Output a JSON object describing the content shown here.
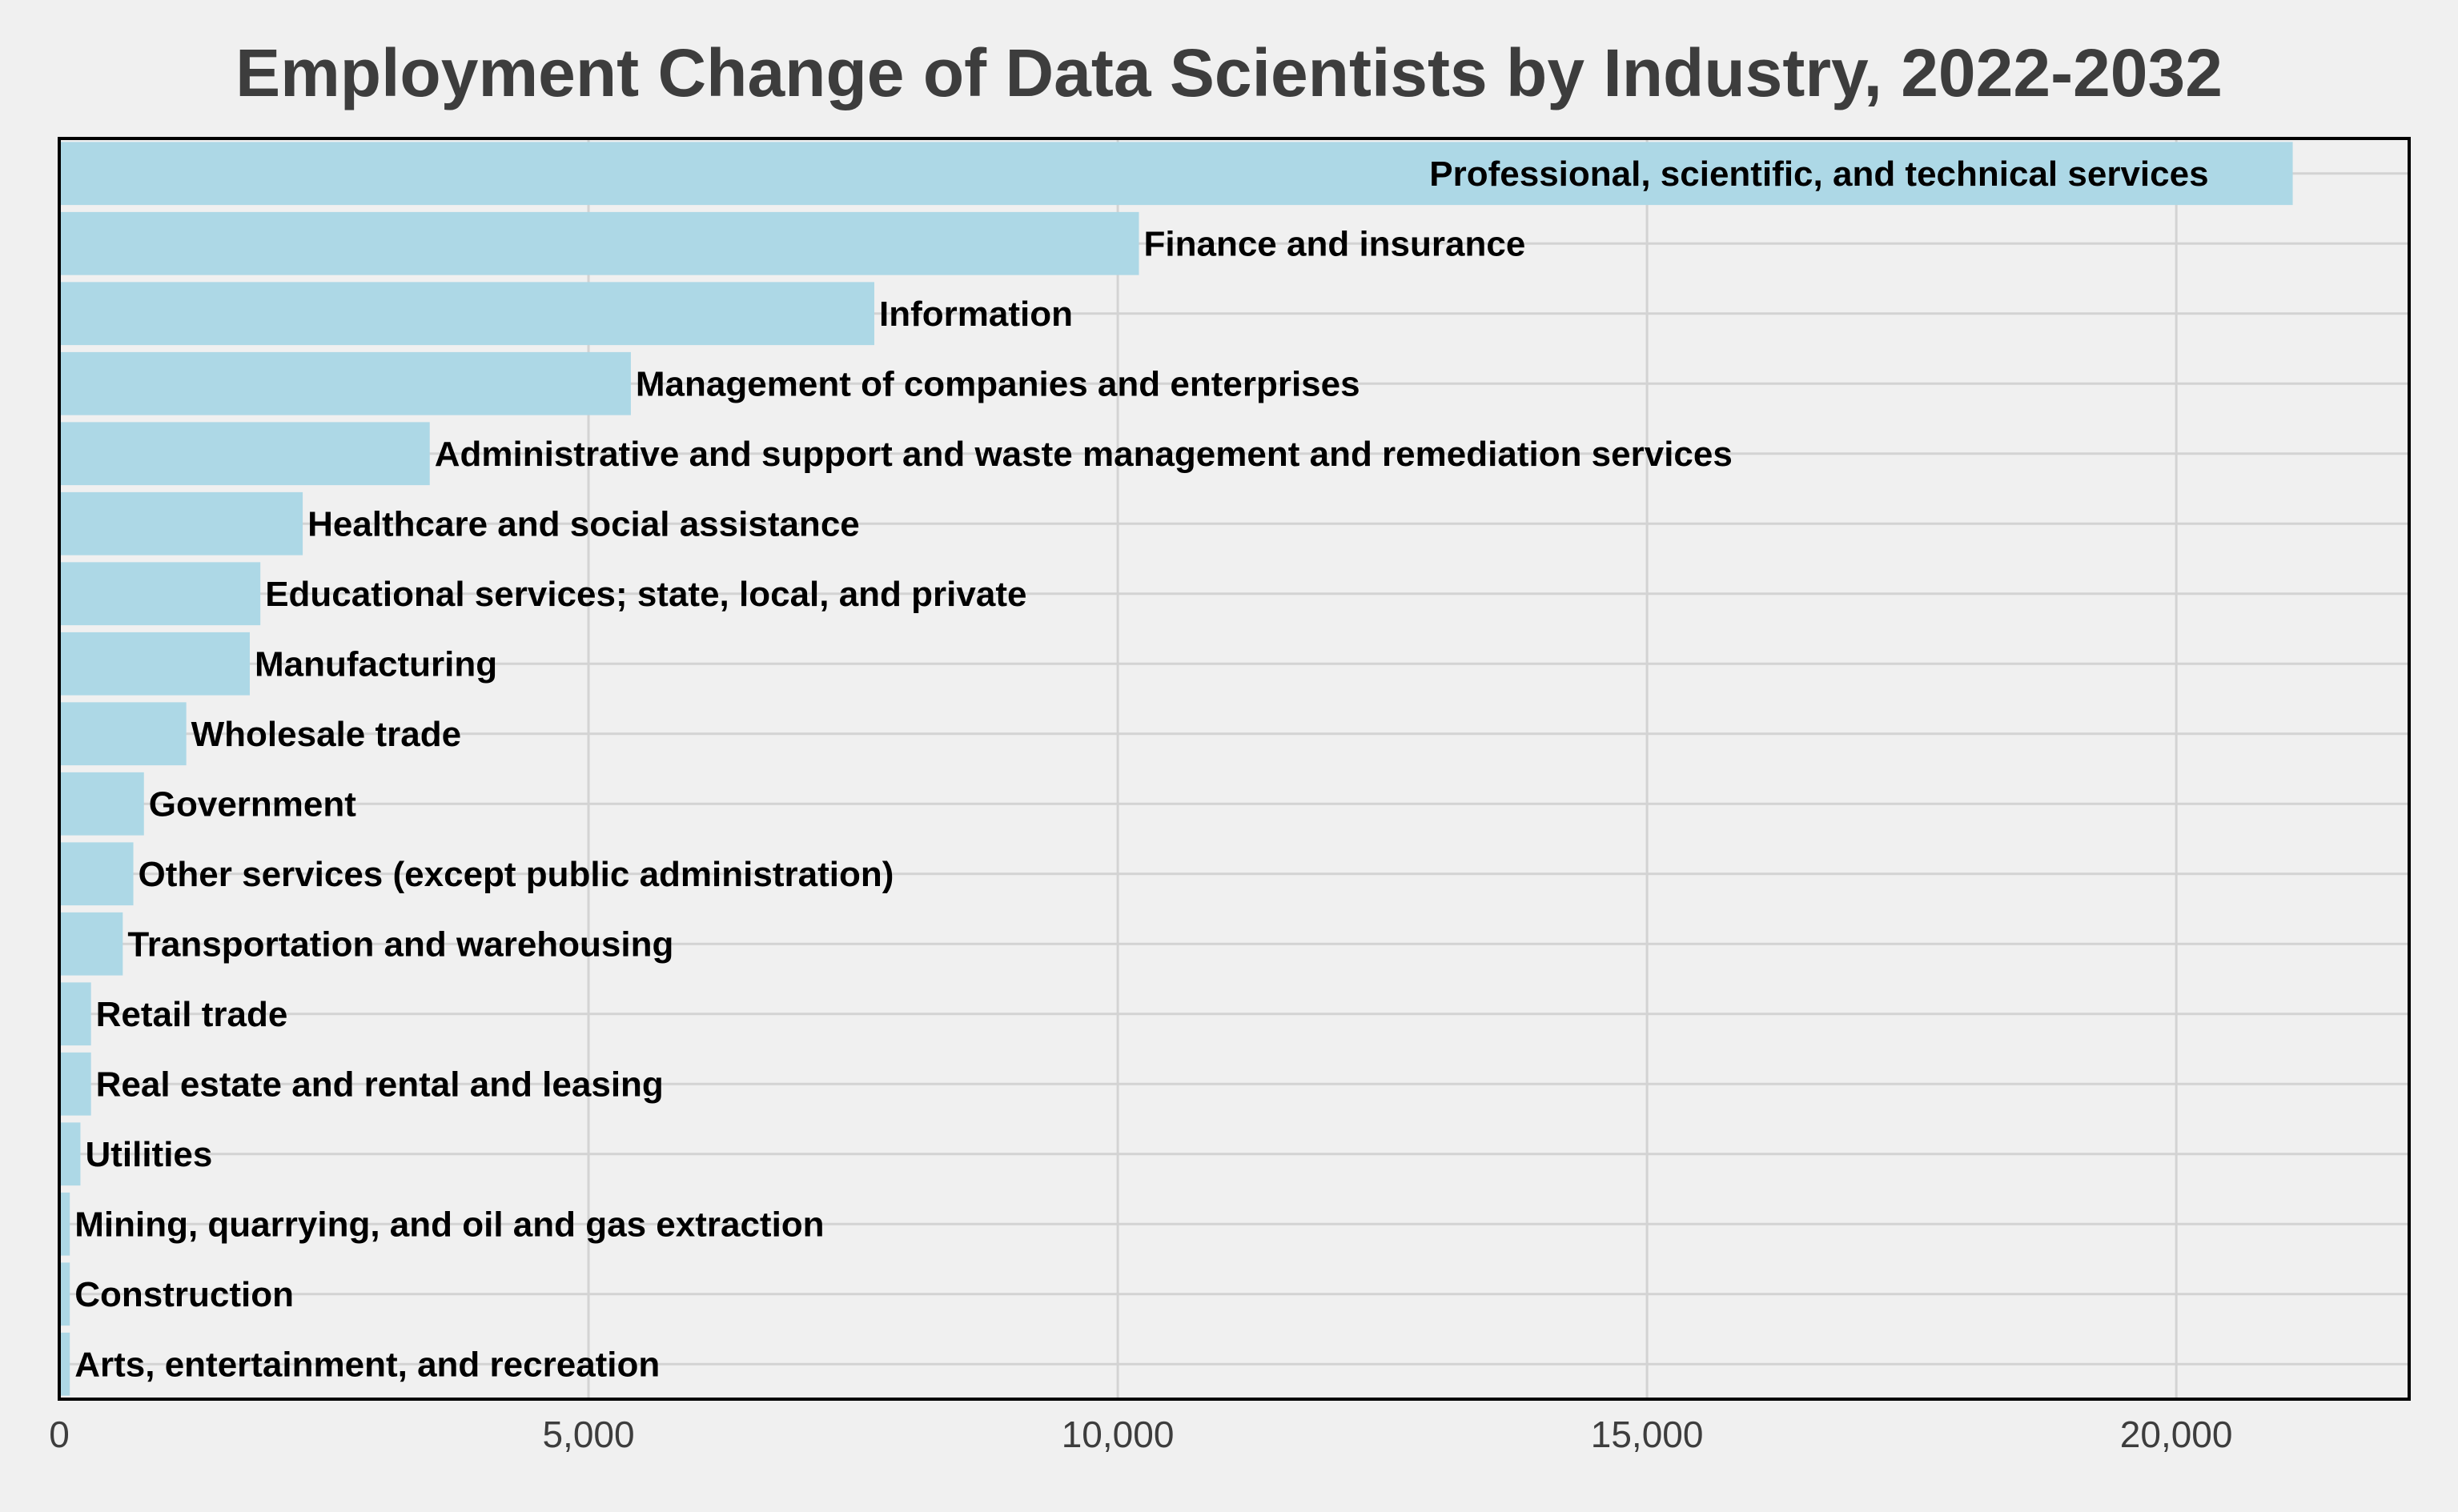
{
  "chart_data": {
    "type": "bar",
    "orientation": "horizontal",
    "title": "Employment Change of Data Scientists by Industry, 2022-2032",
    "xlabel": "",
    "ylabel": "",
    "xlim": [
      0,
      22200
    ],
    "x_ticks": [
      0,
      5000,
      10000,
      15000,
      20000
    ],
    "x_tick_labels": [
      "0",
      "5,000",
      "10,000",
      "15,000",
      "20,000"
    ],
    "grid": true,
    "legend": "none",
    "categories": [
      "Professional, scientific, and technical services",
      "Finance and insurance",
      "Information",
      "Management of companies and enterprises",
      "Administrative and support and waste management and remediation services",
      "Healthcare and social assistance",
      "Educational services; state, local, and private",
      "Manufacturing",
      "Wholesale trade",
      "Government",
      "Other services (except public administration)",
      "Transportation and warehousing",
      "Retail trade",
      "Real estate and rental and leasing",
      "Utilities",
      "Mining, quarrying, and oil and gas extraction",
      "Construction",
      "Arts, entertainment, and recreation"
    ],
    "values": [
      21100,
      10200,
      7700,
      5400,
      3500,
      2300,
      1900,
      1800,
      1200,
      800,
      700,
      600,
      300,
      300,
      200,
      100,
      100,
      100
    ],
    "label_inside_bar": [
      true,
      false,
      false,
      false,
      false,
      false,
      false,
      false,
      false,
      false,
      false,
      false,
      false,
      false,
      false,
      false,
      false,
      false
    ],
    "colors": {
      "background": "#f0f0f0",
      "bar": "#add8e6",
      "grid": "#d3d3d3",
      "frame": "#000000",
      "title": "#3d3d3d",
      "label": "#000000"
    }
  }
}
